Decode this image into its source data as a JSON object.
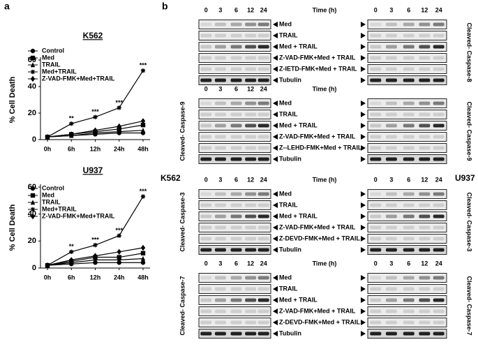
{
  "panel_labels": [
    "a",
    "b"
  ],
  "chart_data": [
    {
      "type": "line",
      "title": "K562",
      "ylabel": "% Cell Death",
      "categories": [
        "0h",
        "6h",
        "12h",
        "24h",
        "48h"
      ],
      "ylim": [
        0,
        60
      ],
      "yticks": [
        0,
        20,
        40,
        60
      ],
      "series": [
        {
          "name": "Control",
          "color": "#000000",
          "marker": "circle",
          "values": [
            2,
            3,
            4,
            5,
            5
          ]
        },
        {
          "name": "Med",
          "color": "#000000",
          "marker": "square",
          "values": [
            2,
            4,
            6,
            8,
            11
          ]
        },
        {
          "name": "TRAIL",
          "color": "#000000",
          "marker": "triangle",
          "values": [
            2,
            3,
            5,
            6,
            7
          ]
        },
        {
          "name": "Med+TRAIL",
          "color": "#000000",
          "marker": "star",
          "values": [
            2,
            12,
            17,
            24,
            52
          ]
        },
        {
          "name": "Z-VAD-FMK+Med+TRAIL",
          "color": "#000000",
          "marker": "diamond",
          "values": [
            2,
            4,
            7,
            10,
            14
          ]
        }
      ],
      "annotations": [
        {
          "text": "**",
          "x": "6h",
          "y": 12
        },
        {
          "text": "***",
          "x": "12h",
          "y": 17
        },
        {
          "text": "***",
          "x": "24h",
          "y": 24
        },
        {
          "text": "***",
          "x": "48h",
          "y": 52
        }
      ]
    },
    {
      "type": "line",
      "title": "U937",
      "ylabel": "% Cell Death",
      "categories": [
        "0h",
        "6h",
        "12h",
        "24h",
        "48h"
      ],
      "ylim": [
        0,
        60
      ],
      "yticks": [
        0,
        20,
        40,
        60
      ],
      "series": [
        {
          "name": "Control",
          "color": "#000000",
          "marker": "circle",
          "values": [
            2,
            3,
            4,
            4,
            4
          ]
        },
        {
          "name": "Med",
          "color": "#000000",
          "marker": "square",
          "values": [
            2,
            5,
            8,
            8,
            11
          ]
        },
        {
          "name": "TRAIL",
          "color": "#000000",
          "marker": "triangle",
          "values": [
            2,
            4,
            6,
            6,
            7
          ]
        },
        {
          "name": "Med+TRAIL",
          "color": "#000000",
          "marker": "star",
          "values": [
            2,
            12,
            17,
            24,
            53
          ]
        },
        {
          "name": "Z-VAD-FMK+Med+TRAIL",
          "color": "#000000",
          "marker": "diamond",
          "values": [
            2,
            6,
            9,
            12,
            15
          ]
        }
      ],
      "annotations": [
        {
          "text": "**",
          "x": "6h",
          "y": 12
        },
        {
          "text": "***",
          "x": "12h",
          "y": 17
        },
        {
          "text": "***",
          "x": "24h",
          "y": 24
        },
        {
          "text": "***",
          "x": "48h",
          "y": 53
        }
      ]
    }
  ],
  "blots": {
    "time_label": "Time (h)",
    "cell_lines": [
      "K562",
      "U937"
    ],
    "groups": [
      {
        "side_label": "Cleaved- Caspase-8",
        "times": [
          0,
          3,
          6,
          12,
          24
        ],
        "right_times": true,
        "lanes": [
          "Med",
          "TRAIL",
          "Med + TRAIL",
          "Z-VAD-FMK+Med + TRAIL",
          "Z-IETD-FMK+Med + TRAIL",
          "Tubulin"
        ]
      },
      {
        "side_label": "Cleaved- Caspase-9",
        "times": [
          0,
          3,
          6,
          12,
          24
        ],
        "right_times": false,
        "lanes": [
          "Med",
          "TRAIL",
          "Med + TRAIL",
          "Z-VAD-FMK+Med + TRAIL",
          "Z--LEHD-FMK+Med + TRAIL",
          "Tubulin"
        ]
      },
      {
        "side_label": "Cleaved- Caspase-3",
        "times": [
          0,
          3,
          6,
          12,
          24
        ],
        "right_times": true,
        "lanes": [
          "Med",
          "TRAIL",
          "Med + TRAIL",
          "Z-VAD-FMK+Med + TRAIL",
          "Z-DEVD-FMK+Med + TRAIL",
          "Tubulin"
        ]
      },
      {
        "side_label": "Cleaved- Caspase-7",
        "times": [
          0,
          3,
          6,
          12,
          24
        ],
        "right_times": true,
        "lanes": [
          "Med",
          "TRAIL",
          "Med + TRAIL",
          "Z-VAD-FMK+Med + TRAIL",
          "Z-DEVD-FMK+Med + TRAIL",
          "Tubulin"
        ]
      }
    ]
  }
}
